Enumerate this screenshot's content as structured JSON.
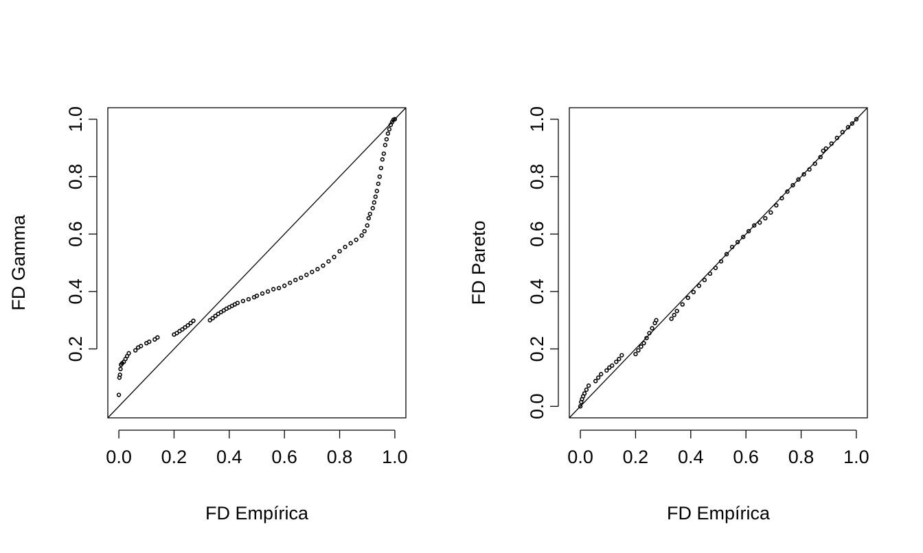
{
  "chart_data": [
    {
      "type": "scatter",
      "title": "",
      "xlabel": "FD Empírica",
      "ylabel": "FD Gamma",
      "xlim": [
        -0.04,
        1.04
      ],
      "ylim": [
        -0.04,
        1.04
      ],
      "xticks": [
        "0.0",
        "0.2",
        "0.4",
        "0.6",
        "0.8",
        "1.0"
      ],
      "yticks": [
        "0.2",
        "0.4",
        "0.6",
        "0.8",
        "1.0"
      ],
      "reference_line": "y = x",
      "grid": false,
      "series": [
        {
          "points": [
            [
              0.0,
              0.04
            ],
            [
              0.002,
              0.1
            ],
            [
              0.004,
              0.11
            ],
            [
              0.006,
              0.13
            ],
            [
              0.008,
              0.145
            ],
            [
              0.012,
              0.15
            ],
            [
              0.018,
              0.155
            ],
            [
              0.024,
              0.165
            ],
            [
              0.03,
              0.175
            ],
            [
              0.036,
              0.185
            ],
            [
              0.06,
              0.195
            ],
            [
              0.07,
              0.205
            ],
            [
              0.08,
              0.21
            ],
            [
              0.1,
              0.22
            ],
            [
              0.11,
              0.225
            ],
            [
              0.13,
              0.233
            ],
            [
              0.14,
              0.24
            ],
            [
              0.2,
              0.25
            ],
            [
              0.21,
              0.255
            ],
            [
              0.22,
              0.262
            ],
            [
              0.23,
              0.268
            ],
            [
              0.24,
              0.275
            ],
            [
              0.25,
              0.282
            ],
            [
              0.26,
              0.29
            ],
            [
              0.27,
              0.298
            ],
            [
              0.33,
              0.3
            ],
            [
              0.34,
              0.307
            ],
            [
              0.35,
              0.315
            ],
            [
              0.36,
              0.322
            ],
            [
              0.37,
              0.328
            ],
            [
              0.38,
              0.334
            ],
            [
              0.39,
              0.34
            ],
            [
              0.4,
              0.345
            ],
            [
              0.41,
              0.35
            ],
            [
              0.42,
              0.355
            ],
            [
              0.43,
              0.36
            ],
            [
              0.45,
              0.367
            ],
            [
              0.47,
              0.373
            ],
            [
              0.49,
              0.38
            ],
            [
              0.5,
              0.385
            ],
            [
              0.52,
              0.393
            ],
            [
              0.54,
              0.4
            ],
            [
              0.56,
              0.408
            ],
            [
              0.58,
              0.412
            ],
            [
              0.6,
              0.42
            ],
            [
              0.62,
              0.43
            ],
            [
              0.64,
              0.44
            ],
            [
              0.66,
              0.448
            ],
            [
              0.68,
              0.458
            ],
            [
              0.7,
              0.468
            ],
            [
              0.72,
              0.478
            ],
            [
              0.74,
              0.49
            ],
            [
              0.76,
              0.505
            ],
            [
              0.78,
              0.52
            ],
            [
              0.8,
              0.54
            ],
            [
              0.82,
              0.555
            ],
            [
              0.84,
              0.568
            ],
            [
              0.86,
              0.58
            ],
            [
              0.88,
              0.595
            ],
            [
              0.89,
              0.61
            ],
            [
              0.9,
              0.63
            ],
            [
              0.905,
              0.655
            ],
            [
              0.91,
              0.67
            ],
            [
              0.92,
              0.69
            ],
            [
              0.925,
              0.71
            ],
            [
              0.93,
              0.73
            ],
            [
              0.935,
              0.75
            ],
            [
              0.94,
              0.775
            ],
            [
              0.945,
              0.8
            ],
            [
              0.95,
              0.83
            ],
            [
              0.955,
              0.86
            ],
            [
              0.96,
              0.88
            ],
            [
              0.965,
              0.91
            ],
            [
              0.97,
              0.93
            ],
            [
              0.975,
              0.95
            ],
            [
              0.98,
              0.965
            ],
            [
              0.985,
              0.98
            ],
            [
              0.99,
              0.99
            ],
            [
              0.995,
              0.998
            ],
            [
              1.0,
              1.0
            ]
          ]
        }
      ]
    },
    {
      "type": "scatter",
      "title": "",
      "xlabel": "FD Empírica",
      "ylabel": "FD Pareto",
      "xlim": [
        -0.04,
        1.04
      ],
      "ylim": [
        -0.04,
        1.04
      ],
      "xticks": [
        "0.0",
        "0.2",
        "0.4",
        "0.6",
        "0.8",
        "1.0"
      ],
      "yticks": [
        "0.0",
        "0.2",
        "0.4",
        "0.6",
        "0.8",
        "1.0"
      ],
      "reference_line": "y = x",
      "grid": false,
      "series": [
        {
          "points": [
            [
              0.0,
              0.0
            ],
            [
              0.003,
              0.015
            ],
            [
              0.006,
              0.025
            ],
            [
              0.01,
              0.035
            ],
            [
              0.015,
              0.045
            ],
            [
              0.022,
              0.058
            ],
            [
              0.03,
              0.072
            ],
            [
              0.055,
              0.088
            ],
            [
              0.065,
              0.1
            ],
            [
              0.075,
              0.112
            ],
            [
              0.095,
              0.125
            ],
            [
              0.105,
              0.135
            ],
            [
              0.115,
              0.142
            ],
            [
              0.13,
              0.155
            ],
            [
              0.14,
              0.165
            ],
            [
              0.15,
              0.178
            ],
            [
              0.2,
              0.182
            ],
            [
              0.21,
              0.195
            ],
            [
              0.22,
              0.208
            ],
            [
              0.23,
              0.22
            ],
            [
              0.24,
              0.238
            ],
            [
              0.25,
              0.255
            ],
            [
              0.26,
              0.272
            ],
            [
              0.27,
              0.29
            ],
            [
              0.275,
              0.3
            ],
            [
              0.33,
              0.305
            ],
            [
              0.34,
              0.318
            ],
            [
              0.35,
              0.332
            ],
            [
              0.37,
              0.355
            ],
            [
              0.39,
              0.378
            ],
            [
              0.41,
              0.398
            ],
            [
              0.43,
              0.42
            ],
            [
              0.45,
              0.44
            ],
            [
              0.47,
              0.462
            ],
            [
              0.49,
              0.482
            ],
            [
              0.51,
              0.505
            ],
            [
              0.53,
              0.53
            ],
            [
              0.55,
              0.555
            ],
            [
              0.57,
              0.572
            ],
            [
              0.59,
              0.59
            ],
            [
              0.61,
              0.61
            ],
            [
              0.63,
              0.63
            ],
            [
              0.65,
              0.64
            ],
            [
              0.67,
              0.655
            ],
            [
              0.69,
              0.675
            ],
            [
              0.71,
              0.7
            ],
            [
              0.73,
              0.725
            ],
            [
              0.75,
              0.748
            ],
            [
              0.77,
              0.77
            ],
            [
              0.79,
              0.79
            ],
            [
              0.81,
              0.808
            ],
            [
              0.83,
              0.825
            ],
            [
              0.85,
              0.845
            ],
            [
              0.87,
              0.868
            ],
            [
              0.88,
              0.89
            ],
            [
              0.89,
              0.898
            ],
            [
              0.91,
              0.915
            ],
            [
              0.93,
              0.935
            ],
            [
              0.95,
              0.955
            ],
            [
              0.97,
              0.972
            ],
            [
              0.985,
              0.985
            ],
            [
              1.0,
              1.0
            ]
          ]
        }
      ]
    }
  ]
}
